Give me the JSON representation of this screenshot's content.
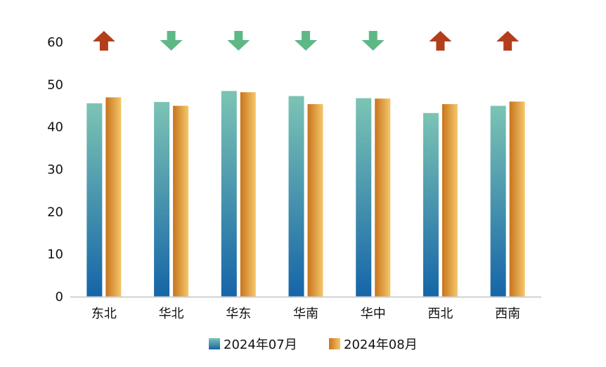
{
  "chart_data": {
    "type": "bar",
    "categories": [
      "东北",
      "华北",
      "华东",
      "华南",
      "华中",
      "西北",
      "西南"
    ],
    "series": [
      {
        "name": "2024年07月",
        "values": [
          45.6,
          45.9,
          48.5,
          47.3,
          46.8,
          43.3,
          45.0
        ]
      },
      {
        "name": "2024年08月",
        "values": [
          47.0,
          45.0,
          48.2,
          45.4,
          46.7,
          45.4,
          46.0
        ]
      }
    ],
    "ylim": [
      0,
      60
    ],
    "yticks": [
      "0",
      "10",
      "20",
      "30",
      "40",
      "50",
      "60"
    ],
    "trend": [
      "up",
      "down",
      "down",
      "down",
      "down",
      "up",
      "up"
    ],
    "grid": false,
    "legend_position": "bottom",
    "colors": {
      "series1_top": "#7cc4b4",
      "series1_bottom": "#1565a8",
      "series2_left": "#c8741c",
      "series2_right": "#f5c76a",
      "trend_up": "#b33e1c",
      "trend_down": "#5db885",
      "axis": "#d0d0d0"
    }
  }
}
